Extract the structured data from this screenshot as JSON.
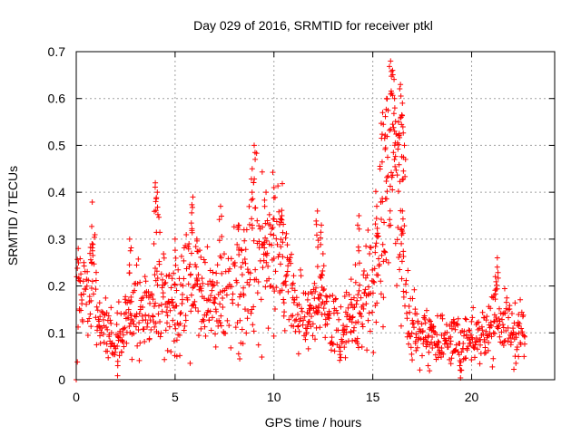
{
  "chart_data": {
    "type": "scatter",
    "title": "Day 029 of 2016, SRMTID for receiver ptkl",
    "xlabel": "GPS time / hours",
    "ylabel": "SRMTID / TECUs",
    "xlim": [
      0,
      24.2
    ],
    "ylim": [
      0,
      0.7
    ],
    "x_ticks": [
      0,
      5,
      10,
      15,
      20
    ],
    "x_tick_labels": [
      "0",
      "5",
      "10",
      "15",
      "20"
    ],
    "y_ticks": [
      0,
      0.1,
      0.2,
      0.3,
      0.4,
      0.5,
      0.6,
      0.7
    ],
    "y_tick_labels": [
      "0",
      "0.1",
      "0.2",
      "0.3",
      "0.4",
      "0.5",
      "0.6",
      "0.7"
    ],
    "grid": true,
    "marker": "+",
    "series": [
      {
        "name": "SRMTID",
        "color": "#ff0000",
        "profile": [
          [
            0.0,
            0.19
          ],
          [
            0.3,
            0.2
          ],
          [
            0.6,
            0.19
          ],
          [
            0.9,
            0.24
          ],
          [
            1.2,
            0.14
          ],
          [
            1.6,
            0.1
          ],
          [
            2.0,
            0.08
          ],
          [
            2.3,
            0.11
          ],
          [
            2.6,
            0.13
          ],
          [
            3.0,
            0.16
          ],
          [
            3.4,
            0.15
          ],
          [
            3.8,
            0.17
          ],
          [
            4.1,
            0.2
          ],
          [
            4.4,
            0.17
          ],
          [
            4.8,
            0.14
          ],
          [
            5.1,
            0.12
          ],
          [
            5.4,
            0.17
          ],
          [
            5.8,
            0.23
          ],
          [
            6.2,
            0.18
          ],
          [
            6.6,
            0.18
          ],
          [
            7.0,
            0.16
          ],
          [
            7.4,
            0.19
          ],
          [
            7.8,
            0.2
          ],
          [
            8.2,
            0.2
          ],
          [
            8.6,
            0.21
          ],
          [
            9.0,
            0.28
          ],
          [
            9.4,
            0.26
          ],
          [
            9.8,
            0.25
          ],
          [
            10.2,
            0.3
          ],
          [
            10.5,
            0.24
          ],
          [
            10.9,
            0.18
          ],
          [
            11.3,
            0.14
          ],
          [
            11.7,
            0.13
          ],
          [
            12.1,
            0.18
          ],
          [
            12.5,
            0.17
          ],
          [
            12.9,
            0.13
          ],
          [
            13.3,
            0.1
          ],
          [
            13.7,
            0.13
          ],
          [
            14.1,
            0.14
          ],
          [
            14.5,
            0.16
          ],
          [
            14.8,
            0.2
          ],
          [
            15.1,
            0.22
          ],
          [
            15.4,
            0.29
          ],
          [
            15.7,
            0.36
          ],
          [
            16.0,
            0.4
          ],
          [
            16.3,
            0.38
          ],
          [
            16.6,
            0.22
          ],
          [
            16.9,
            0.12
          ],
          [
            17.3,
            0.1
          ],
          [
            17.7,
            0.09
          ],
          [
            18.1,
            0.09
          ],
          [
            18.5,
            0.09
          ],
          [
            18.9,
            0.08
          ],
          [
            19.3,
            0.09
          ],
          [
            19.7,
            0.07
          ],
          [
            20.1,
            0.1
          ],
          [
            20.5,
            0.08
          ],
          [
            20.8,
            0.11
          ],
          [
            21.2,
            0.13
          ],
          [
            21.6,
            0.12
          ],
          [
            22.0,
            0.11
          ],
          [
            22.4,
            0.1
          ],
          [
            22.7,
            0.09
          ]
        ],
        "spikes": [
          [
            0.1,
            0.28
          ],
          [
            0.0,
            0.0
          ],
          [
            0.8,
            0.29
          ],
          [
            2.1,
            0.03
          ],
          [
            2.7,
            0.3
          ],
          [
            4.0,
            0.42
          ],
          [
            4.1,
            0.4
          ],
          [
            5.0,
            0.3
          ],
          [
            5.9,
            0.39
          ],
          [
            6.1,
            0.3
          ],
          [
            7.3,
            0.37
          ],
          [
            8.2,
            0.33
          ],
          [
            8.9,
            0.45
          ],
          [
            9.0,
            0.5
          ],
          [
            9.6,
            0.4
          ],
          [
            10.0,
            0.41
          ],
          [
            10.4,
            0.35
          ],
          [
            12.2,
            0.36
          ],
          [
            12.4,
            0.33
          ],
          [
            14.3,
            0.35
          ],
          [
            15.2,
            0.37
          ],
          [
            15.5,
            0.57
          ],
          [
            15.7,
            0.6
          ],
          [
            15.9,
            0.68
          ],
          [
            16.0,
            0.66
          ],
          [
            16.1,
            0.6
          ],
          [
            16.3,
            0.55
          ],
          [
            16.4,
            0.63
          ],
          [
            16.5,
            0.59
          ],
          [
            16.6,
            0.5
          ],
          [
            16.5,
            0.36
          ],
          [
            17.8,
            0.03
          ],
          [
            19.4,
            0.03
          ],
          [
            21.3,
            0.26
          ],
          [
            21.2,
            0.22
          ],
          [
            22.2,
            0.05
          ]
        ]
      }
    ]
  }
}
